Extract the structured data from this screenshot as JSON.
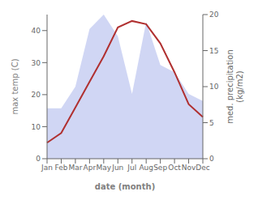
{
  "chart_data": {
    "type": "line",
    "categories": [
      "Jan",
      "Feb",
      "Mar",
      "Apr",
      "May",
      "Jun",
      "Jul",
      "Aug",
      "Sep",
      "Oct",
      "Nov",
      "Dec"
    ],
    "series": [
      {
        "type": "area",
        "axis": "y2",
        "color": "#c0c8f0",
        "values": [
          7,
          7,
          10,
          18,
          20,
          17,
          9,
          19,
          13,
          12,
          9,
          8
        ]
      },
      {
        "type": "line",
        "color": "#b03030",
        "values": [
          5,
          8,
          16,
          24,
          32,
          41,
          43,
          42,
          36,
          27,
          17,
          13
        ]
      }
    ],
    "xlabel": "date (month)",
    "ylabel": "max temp (C)",
    "y2label": "med. precipitation\n(kg/m2)",
    "ylim": [
      0,
      45
    ],
    "yticks": [
      0,
      10,
      20,
      30,
      40
    ],
    "y2lim": [
      0,
      20
    ],
    "y2ticks": [
      0,
      5,
      10,
      15,
      20
    ],
    "grid": false
  }
}
